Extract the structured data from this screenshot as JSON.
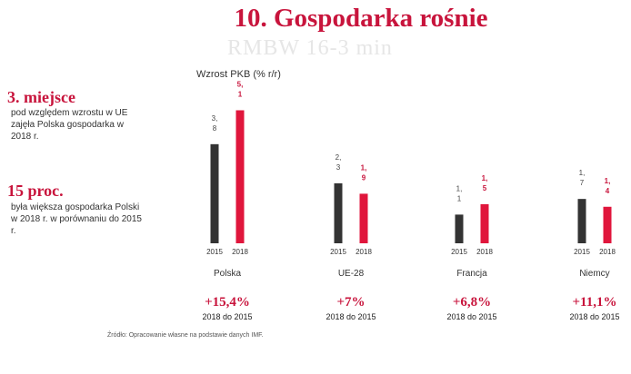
{
  "title": "10. Gospodarka rośnie",
  "ghost_text": "RMBW 16-3 min",
  "stats": [
    {
      "head": "3. miejsce",
      "desc": "pod względem wzrostu w UE zajęła Polska gospodarka w 2018 r."
    },
    {
      "head": "15 proc.",
      "desc": "była większa gospodarka Polski w 2018 r. w porównaniu do 2015 r."
    }
  ],
  "source": "Źródło: Opracowanie własne na podstawie danych IMF.",
  "colors": {
    "accent": "#c8143c",
    "bar_2015": "#333333",
    "bar_2018": "#e0163c"
  },
  "chart_data": {
    "type": "bar",
    "ylabel": "Wzrost PKB (% r/r)",
    "categories": [
      "Polska",
      "UE-28",
      "Francja",
      "Niemcy"
    ],
    "series": [
      {
        "name": "2015",
        "values": [
          3.8,
          2.3,
          1.1,
          1.7
        ],
        "labels": [
          "3,\n8",
          "2,\n3",
          "1,\n1",
          "1,\n7"
        ]
      },
      {
        "name": "2018",
        "values": [
          5.1,
          1.9,
          1.5,
          1.4
        ],
        "labels": [
          "5,\n1",
          "1,\n9",
          "1,\n5",
          "1,\n4"
        ]
      }
    ],
    "ylim": [
      0,
      5.5
    ],
    "growth": [
      {
        "value": "+15,4%",
        "period": "2018 do 2015"
      },
      {
        "value": "+7%",
        "period": "2018 do 2015"
      },
      {
        "value": "+6,8%",
        "period": "2018 do 2015"
      },
      {
        "value": "+11,1%",
        "period": "2018 do 2015"
      }
    ]
  }
}
